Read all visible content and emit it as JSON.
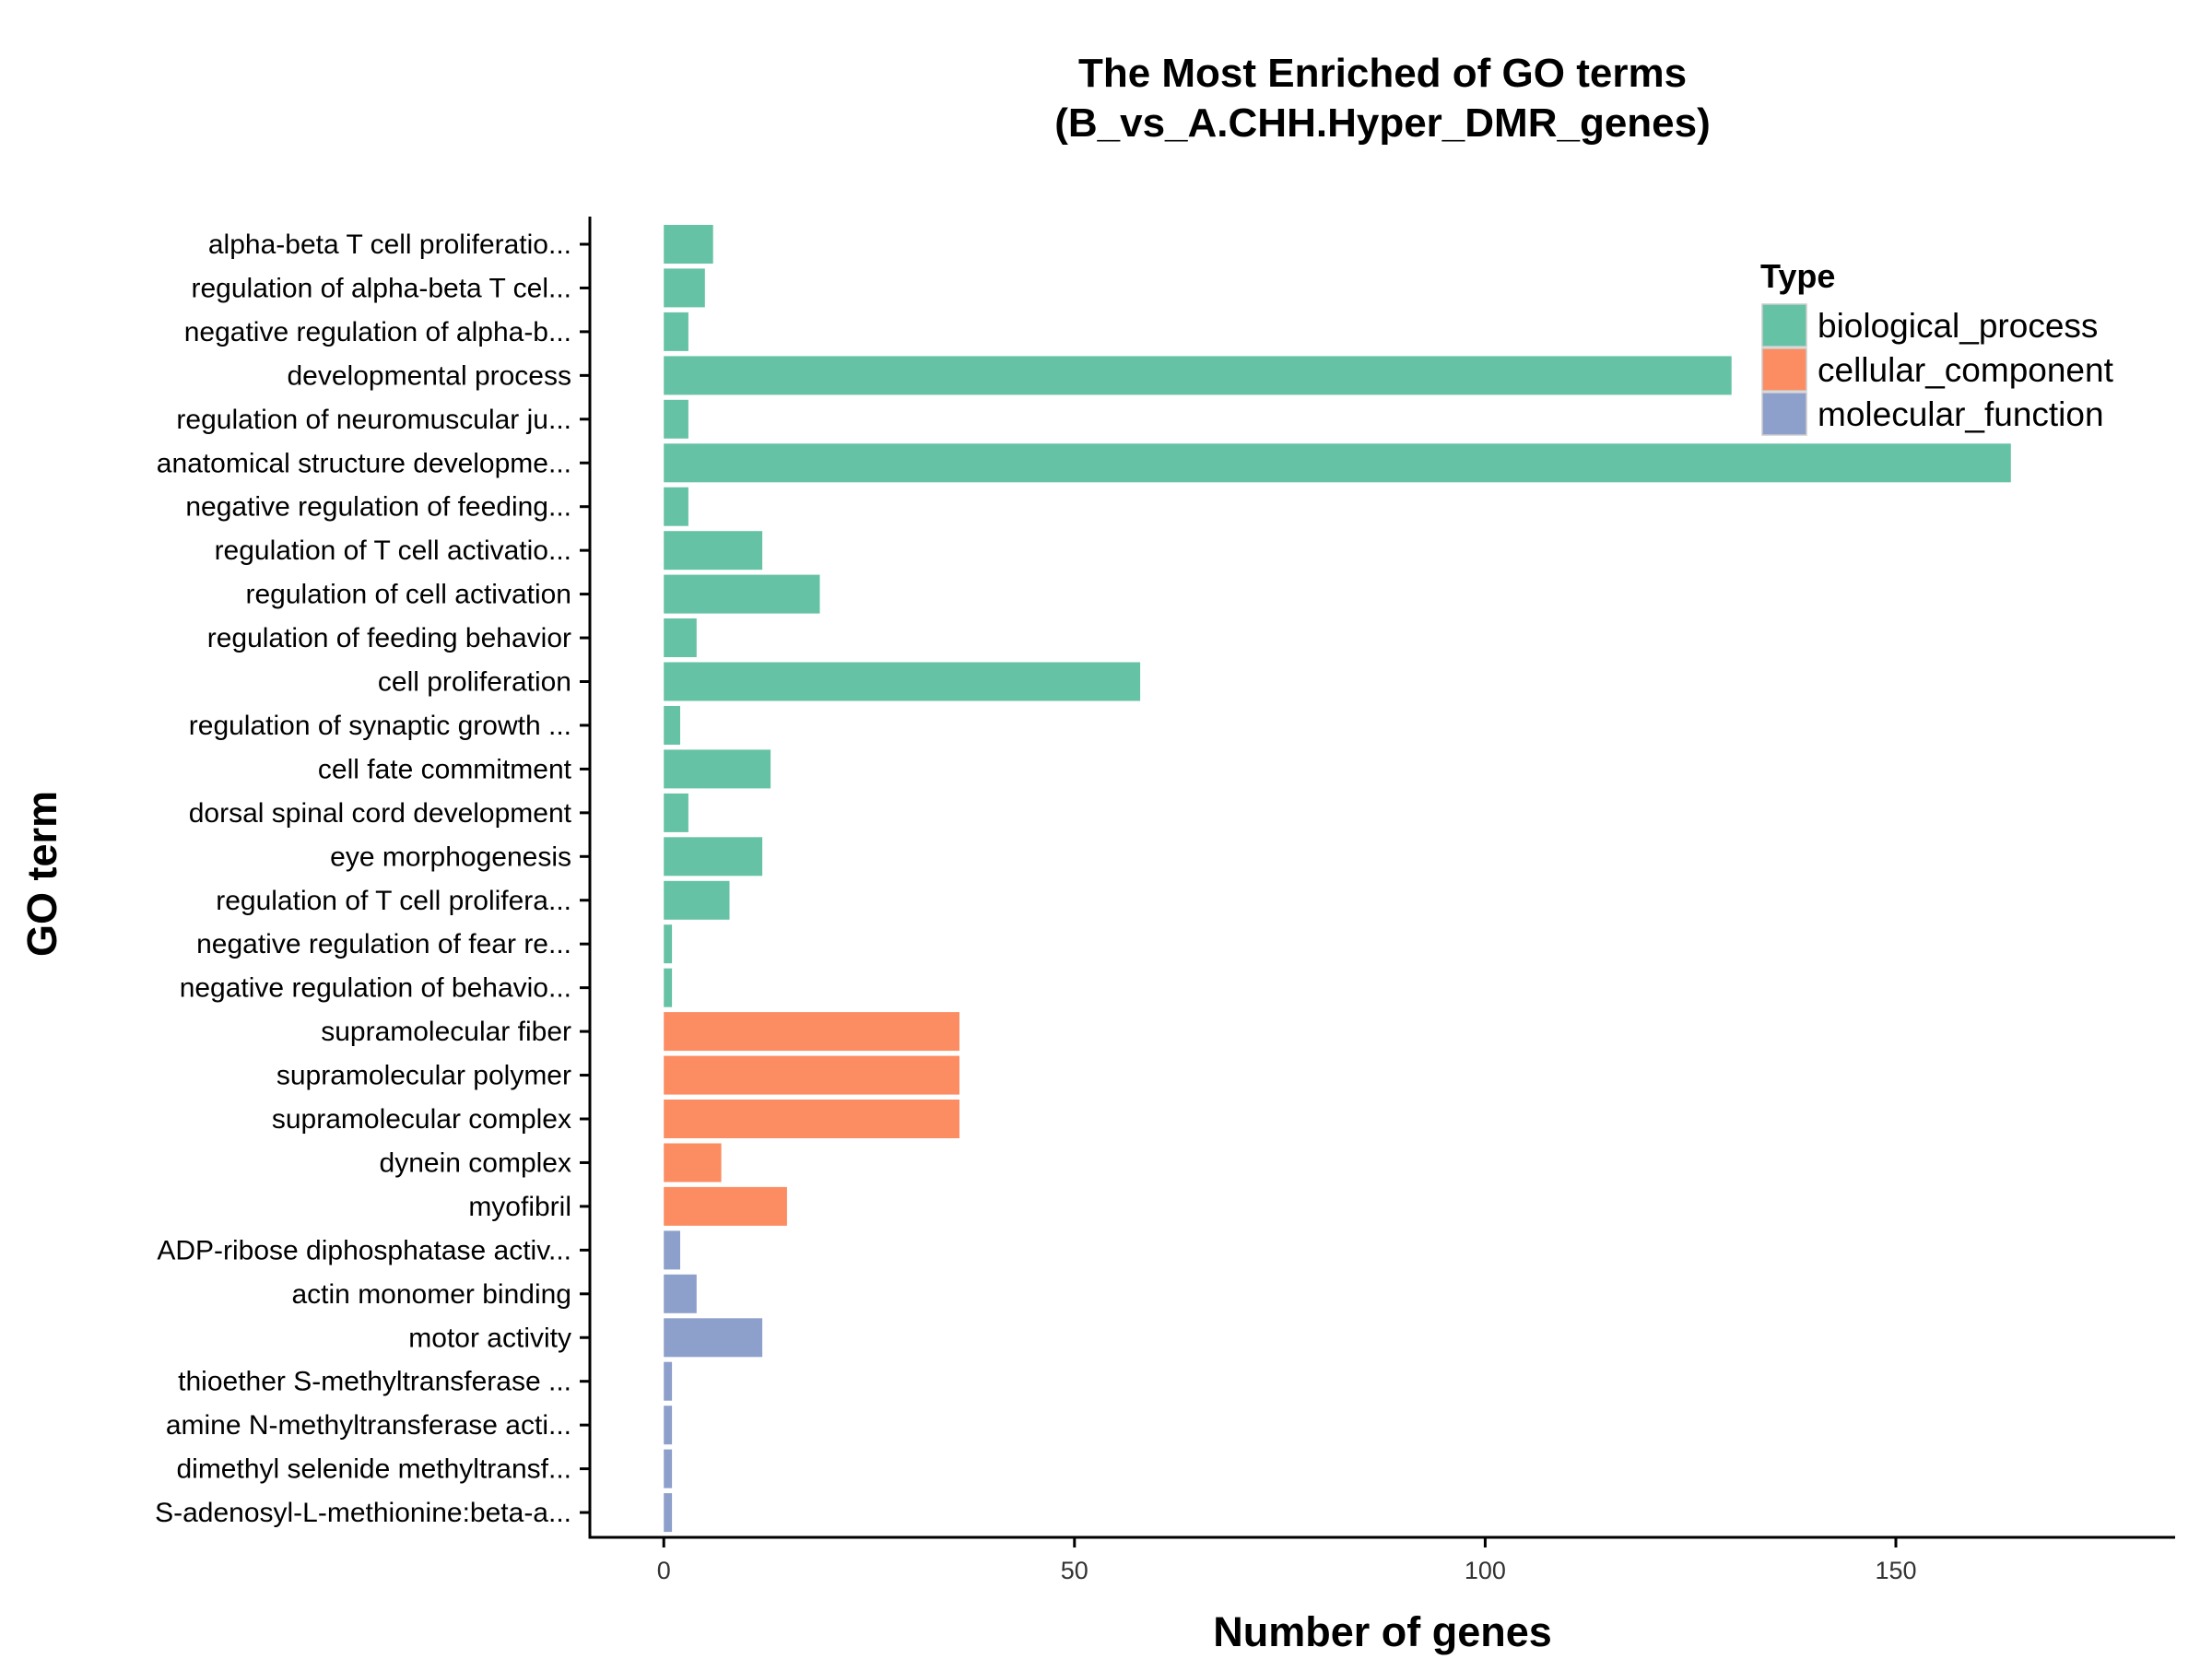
{
  "chart_data": {
    "type": "bar",
    "orientation": "horizontal",
    "title": [
      "The Most Enriched of GO terms",
      "(B_vs_A.CHH.Hyper_DMR_genes)"
    ],
    "xlabel": "Number of genes",
    "ylabel": "GO term",
    "xlim": [
      -9,
      184
    ],
    "xticks": [
      0,
      50,
      100,
      150
    ],
    "grid": false,
    "legend": {
      "title": "Type",
      "position": "top-right",
      "entries": [
        {
          "name": "biological_process",
          "color": "#66c2a5"
        },
        {
          "name": "cellular_component",
          "color": "#fc8d62"
        },
        {
          "name": "molecular_function",
          "color": "#8da0cb"
        }
      ]
    },
    "bars": [
      {
        "term": "alpha-beta T cell proliferatio...",
        "value": 6,
        "type": "biological_process"
      },
      {
        "term": "regulation of alpha-beta T cel...",
        "value": 5,
        "type": "biological_process"
      },
      {
        "term": "negative regulation of alpha-b...",
        "value": 3,
        "type": "biological_process"
      },
      {
        "term": "developmental process",
        "value": 130,
        "type": "biological_process"
      },
      {
        "term": "regulation of neuromuscular ju...",
        "value": 3,
        "type": "biological_process"
      },
      {
        "term": "anatomical structure developme...",
        "value": 164,
        "type": "biological_process"
      },
      {
        "term": "negative regulation of feeding...",
        "value": 3,
        "type": "biological_process"
      },
      {
        "term": "regulation of T cell activatio...",
        "value": 12,
        "type": "biological_process"
      },
      {
        "term": "regulation of cell activation",
        "value": 19,
        "type": "biological_process"
      },
      {
        "term": "regulation of feeding behavior",
        "value": 4,
        "type": "biological_process"
      },
      {
        "term": "cell proliferation",
        "value": 58,
        "type": "biological_process"
      },
      {
        "term": "regulation of synaptic growth ...",
        "value": 2,
        "type": "biological_process"
      },
      {
        "term": "cell fate commitment",
        "value": 13,
        "type": "biological_process"
      },
      {
        "term": "dorsal spinal cord development",
        "value": 3,
        "type": "biological_process"
      },
      {
        "term": "eye morphogenesis",
        "value": 12,
        "type": "biological_process"
      },
      {
        "term": "regulation of T cell prolifera...",
        "value": 8,
        "type": "biological_process"
      },
      {
        "term": "negative regulation of fear re...",
        "value": 1,
        "type": "biological_process"
      },
      {
        "term": "negative regulation of behavio...",
        "value": 1,
        "type": "biological_process"
      },
      {
        "term": "supramolecular fiber",
        "value": 36,
        "type": "cellular_component"
      },
      {
        "term": "supramolecular polymer",
        "value": 36,
        "type": "cellular_component"
      },
      {
        "term": "supramolecular complex",
        "value": 36,
        "type": "cellular_component"
      },
      {
        "term": "dynein complex",
        "value": 7,
        "type": "cellular_component"
      },
      {
        "term": "myofibril",
        "value": 15,
        "type": "cellular_component"
      },
      {
        "term": "ADP-ribose diphosphatase activ...",
        "value": 2,
        "type": "molecular_function"
      },
      {
        "term": "actin monomer binding",
        "value": 4,
        "type": "molecular_function"
      },
      {
        "term": "motor activity",
        "value": 12,
        "type": "molecular_function"
      },
      {
        "term": "thioether S-methyltransferase ...",
        "value": 1,
        "type": "molecular_function"
      },
      {
        "term": "amine N-methyltransferase acti...",
        "value": 1,
        "type": "molecular_function"
      },
      {
        "term": "dimethyl selenide methyltransf...",
        "value": 1,
        "type": "molecular_function"
      },
      {
        "term": "S-adenosyl-L-methionine:beta-a...",
        "value": 1,
        "type": "molecular_function"
      }
    ]
  }
}
